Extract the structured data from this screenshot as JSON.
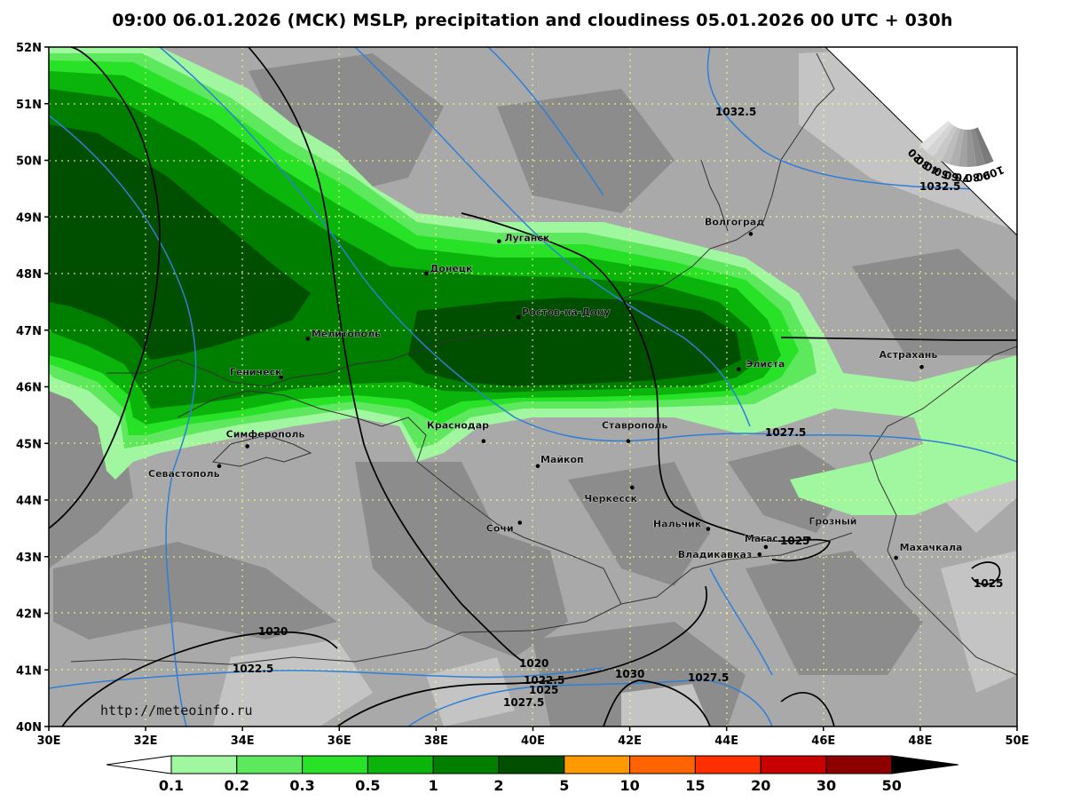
{
  "title": "09:00 06.01.2026 (МСК) MSLP, precipitation and cloudiness 05.01.2026 00 UTC + 030h",
  "credit": "http://meteoinfo.ru",
  "axes": {
    "lat_labels": [
      "52N",
      "51N",
      "50N",
      "49N",
      "48N",
      "47N",
      "46N",
      "45N",
      "44N",
      "43N",
      "42N",
      "41N",
      "40N"
    ],
    "lon_labels": [
      "30E",
      "32E",
      "34E",
      "36E",
      "38E",
      "40E",
      "42E",
      "44E",
      "46E",
      "48E",
      "50E"
    ]
  },
  "cities": [
    {
      "name": "Луганск",
      "lon": 39.3,
      "lat": 48.57
    },
    {
      "name": "Волгоград",
      "lon": 44.5,
      "lat": 48.7
    },
    {
      "name": "Донецк",
      "lon": 37.8,
      "lat": 48.0
    },
    {
      "name": "Ростов-на-Дону",
      "lon": 39.7,
      "lat": 47.23
    },
    {
      "name": "Мелитополь",
      "lon": 35.35,
      "lat": 46.85
    },
    {
      "name": "Геническ",
      "lon": 34.8,
      "lat": 46.17
    },
    {
      "name": "Элиста",
      "lon": 44.25,
      "lat": 46.31
    },
    {
      "name": "Астрахань",
      "lon": 48.03,
      "lat": 46.35
    },
    {
      "name": "Краснодар",
      "lon": 38.98,
      "lat": 45.04
    },
    {
      "name": "Ставрополь",
      "lon": 41.97,
      "lat": 45.04
    },
    {
      "name": "Симферополь",
      "lon": 34.1,
      "lat": 44.95
    },
    {
      "name": "Севастополь",
      "lon": 33.52,
      "lat": 44.6
    },
    {
      "name": "Майкоп",
      "lon": 40.1,
      "lat": 44.6
    },
    {
      "name": "Черкесск",
      "lon": 42.05,
      "lat": 44.22
    },
    {
      "name": "Сочи",
      "lon": 39.73,
      "lat": 43.6
    },
    {
      "name": "Нальчик",
      "lon": 43.62,
      "lat": 43.49
    },
    {
      "name": "Грозный",
      "lon": 45.7,
      "lat": 43.32
    },
    {
      "name": "Магас",
      "lon": 44.81,
      "lat": 43.17
    },
    {
      "name": "Владикавказ",
      "lon": 44.68,
      "lat": 43.04
    },
    {
      "name": "Махачкала",
      "lon": 47.5,
      "lat": 42.98
    }
  ],
  "isobar_labels": [
    "1032.5",
    "1032.5",
    "1027.5",
    "1025",
    "1025",
    "1020",
    "1022.5",
    "1020",
    "1022.5",
    "1025",
    "1027.5",
    "1030",
    "1027.5"
  ],
  "precip_scale": {
    "labels": [
      "0.1",
      "0.2",
      "0.3",
      "0.5",
      "1",
      "2",
      "5",
      "10",
      "15",
      "20",
      "30",
      "50"
    ],
    "colors": [
      "#ffffff",
      "#a0f7a0",
      "#5ee85e",
      "#28e228",
      "#0ab40a",
      "#007e00",
      "#004e00",
      "#ff9900",
      "#ff6400",
      "#ff3000",
      "#c80000",
      "#8c0000",
      "#000000"
    ]
  },
  "cloud_scale": {
    "labels": [
      "100",
      "90",
      "80",
      "70",
      "60",
      "50",
      "40",
      "30",
      "20"
    ]
  },
  "colors": {
    "land_gray": "#a9a9a9",
    "cloud_dark": "#8a8a8a",
    "cloud_light": "#c6c6c6",
    "isobar_blue": "#2f7fd8",
    "isobar_black": "#000000",
    "grid": "#ffff80"
  }
}
